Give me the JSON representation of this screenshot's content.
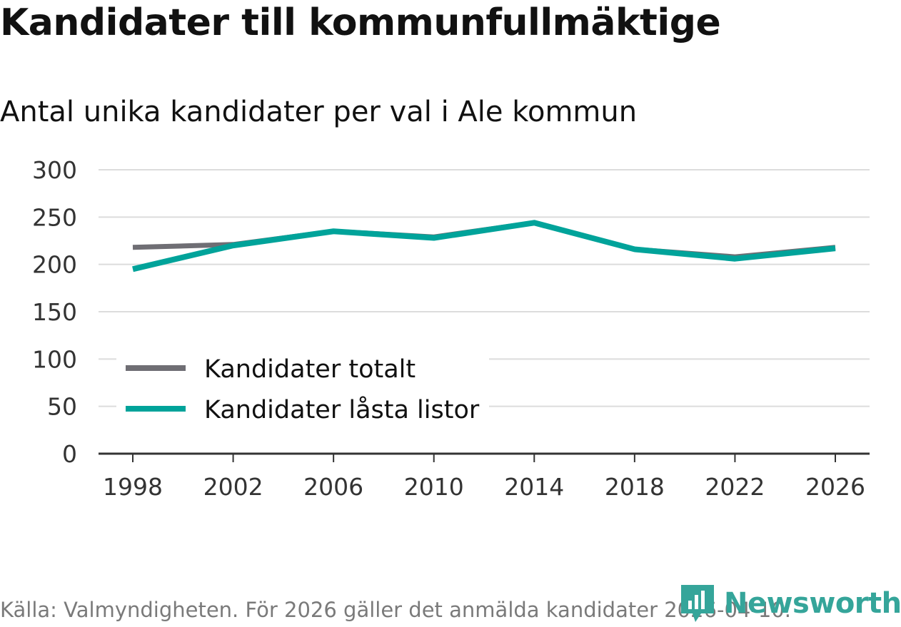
{
  "header": {
    "title": "Kandidater till kommunfullmäktige",
    "subtitle": "Antal unika kandidater per val i Ale kommun"
  },
  "footer": {
    "source": "Källa: Valmyndigheten. För 2026 gäller det anmälda kandidater 2026-04-10.",
    "brand": "Newsworthy",
    "brand_icon": "bar-chart-pin-icon",
    "brand_color": "#35a59a"
  },
  "chart_data": {
    "type": "line",
    "title": "Kandidater till kommunfullmäktige",
    "subtitle": "Antal unika kandidater per val i Ale kommun",
    "x": [
      1998,
      2002,
      2006,
      2010,
      2014,
      2018,
      2022,
      2026
    ],
    "x_tick_labels": [
      "1998",
      "2002",
      "2006",
      "2010",
      "2014",
      "2018",
      "2022",
      "2026"
    ],
    "y_ticks": [
      0,
      50,
      100,
      150,
      200,
      250,
      300
    ],
    "y_tick_labels": [
      "0",
      "50",
      "100",
      "150",
      "200",
      "250",
      "300"
    ],
    "ylim": [
      0,
      300
    ],
    "grid": true,
    "xlabel": "",
    "ylabel": "",
    "legend_position": "bottom-left",
    "series": [
      {
        "name": "Kandidater totalt",
        "color": "#6f6e74",
        "values": [
          218,
          221,
          235,
          229,
          244,
          216,
          208,
          218
        ]
      },
      {
        "name": "Kandidater låsta listor",
        "color": "#00a39a",
        "values": [
          195,
          220,
          235,
          228,
          244,
          216,
          206,
          217
        ]
      }
    ]
  }
}
